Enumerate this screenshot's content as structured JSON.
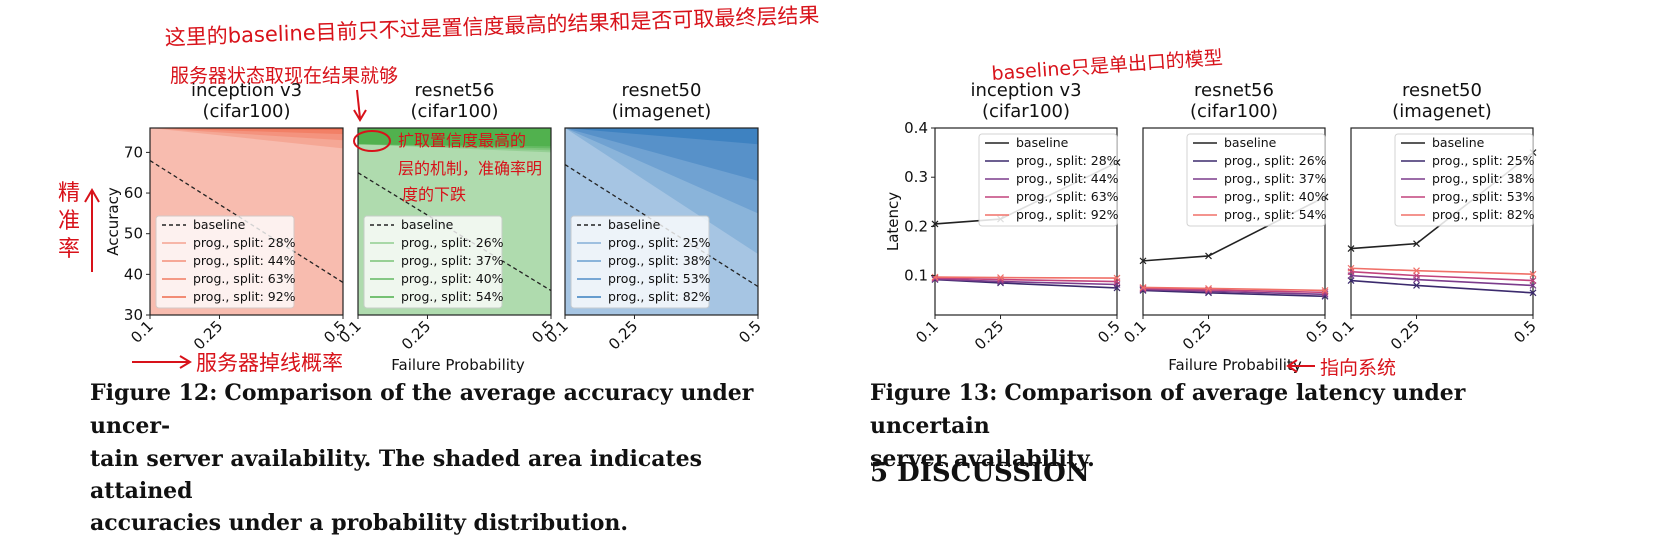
{
  "figure12": {
    "label": "Figure 12:",
    "caption": "Comparison of the average accuracy under uncertain server availability. The shaded area indicates attained accuracies under a probability distribution.",
    "caption_lines": [
      "Comparison of the average accuracy under uncer-",
      "tain server availability. The shaded area indicates attained",
      "accuracies under a probability distribution."
    ]
  },
  "figure13": {
    "label": "Figure 13:",
    "caption_lines": [
      "Comparison of average latency under uncertain",
      "server availability."
    ]
  },
  "section_heading": "5   DISCUSSION",
  "annotations": {
    "top_note_line1": "这里的baseline目前只不过是置信度最高的结果和是否可取最终层结果",
    "top_note_line2": "服务器状态取现在结果就够",
    "left_vertical": "精准率",
    "bottom_left": "服务器掉线概率",
    "green_panel_note1": "扩取置信度最高的",
    "green_panel_note2": "层的机制，准确率明",
    "green_panel_note3": "度的下跌",
    "right_top": "baseline只是单出口的模型",
    "right_bottom": "指向系统"
  },
  "chart_data": [
    {
      "type": "area",
      "title": "inception v3\n(cifar100)",
      "title_lines": [
        "inception v3",
        "(cifar100)"
      ],
      "ylabel": "Accuracy",
      "xlabel": "Failure Probability",
      "x_ticks": [
        "0.1",
        "0.25",
        "0.5"
      ],
      "y_ticks": [
        "30",
        "40",
        "50",
        "60",
        "70"
      ],
      "ylim": [
        30,
        76
      ],
      "color": "#ef6a4d",
      "x": [
        0.1,
        0.5
      ],
      "baseline": {
        "name": "baseline",
        "values": [
          68,
          38
        ]
      },
      "series": [
        {
          "name": "prog., split: 28%",
          "values": [
            76,
            71
          ]
        },
        {
          "name": "prog., split: 44%",
          "values": [
            76,
            73
          ]
        },
        {
          "name": "prog., split: 63%",
          "values": [
            76,
            74.5
          ]
        },
        {
          "name": "prog., split: 92%",
          "values": [
            76,
            75.5
          ]
        }
      ]
    },
    {
      "type": "area",
      "title": "resnet56\n(cifar100)",
      "title_lines": [
        "resnet56",
        "(cifar100)"
      ],
      "ylim": [
        30,
        76
      ],
      "color": "#4daf4a",
      "x_ticks": [
        "0.1",
        "0.25",
        "0.5"
      ],
      "x": [
        0.1,
        0.5
      ],
      "baseline": {
        "name": "baseline",
        "values": [
          65,
          36
        ]
      },
      "series": [
        {
          "name": "prog., split: 26%",
          "values": [
            72,
            70
          ]
        },
        {
          "name": "prog., split: 37%",
          "values": [
            72,
            70.5
          ]
        },
        {
          "name": "prog., split: 40%",
          "values": [
            72,
            71
          ]
        },
        {
          "name": "prog., split: 54%",
          "values": [
            72,
            71.5
          ]
        }
      ]
    },
    {
      "type": "area",
      "title": "resnet50\n(imagenet)",
      "title_lines": [
        "resnet50",
        "(imagenet)"
      ],
      "ylim": [
        30,
        76
      ],
      "color": "#3a7fc0",
      "x_ticks": [
        "0.1",
        "0.25",
        "0.5"
      ],
      "x": [
        0.1,
        0.5
      ],
      "baseline": {
        "name": "baseline",
        "values": [
          67,
          37
        ]
      },
      "series": [
        {
          "name": "prog., split: 25%",
          "values": [
            76,
            45
          ]
        },
        {
          "name": "prog., split: 38%",
          "values": [
            76,
            55
          ]
        },
        {
          "name": "prog., split: 53%",
          "values": [
            76,
            63
          ]
        },
        {
          "name": "prog., split: 82%",
          "values": [
            76,
            72
          ]
        }
      ]
    },
    {
      "type": "line",
      "title": "inception v3\n(cifar100)",
      "title_lines": [
        "inception v3",
        "(cifar100)"
      ],
      "ylabel": "Latency",
      "xlabel": "Failure Probability",
      "x_ticks": [
        "0.1",
        "0.25",
        "0.5"
      ],
      "y_ticks": [
        "0.1",
        "0.2",
        "0.3",
        "0.4"
      ],
      "ylim": [
        0.02,
        0.4
      ],
      "x": [
        0.1,
        0.25,
        0.5
      ],
      "series": [
        {
          "name": "baseline",
          "color": "#222222",
          "values": [
            0.205,
            0.215,
            0.33
          ]
        },
        {
          "name": "prog., split: 28%",
          "color": "#3b2a6d",
          "values": [
            0.092,
            0.085,
            0.075
          ]
        },
        {
          "name": "prog., split: 44%",
          "color": "#7b3c8c",
          "values": [
            0.093,
            0.088,
            0.082
          ]
        },
        {
          "name": "prog., split: 63%",
          "color": "#c2437d",
          "values": [
            0.095,
            0.092,
            0.088
          ]
        },
        {
          "name": "prog., split: 92%",
          "color": "#f07068",
          "values": [
            0.097,
            0.096,
            0.095
          ]
        }
      ]
    },
    {
      "type": "line",
      "title": "resnet56\n(cifar100)",
      "title_lines": [
        "resnet56",
        "(cifar100)"
      ],
      "ylim": [
        0.02,
        0.4
      ],
      "x_ticks": [
        "0.1",
        "0.25",
        "0.5"
      ],
      "x": [
        0.1,
        0.25,
        0.5
      ],
      "series": [
        {
          "name": "baseline",
          "color": "#222222",
          "values": [
            0.13,
            0.14,
            0.26
          ]
        },
        {
          "name": "prog., split: 26%",
          "color": "#3b2a6d",
          "values": [
            0.07,
            0.065,
            0.058
          ]
        },
        {
          "name": "prog., split: 37%",
          "color": "#7b3c8c",
          "values": [
            0.072,
            0.068,
            0.062
          ]
        },
        {
          "name": "prog., split: 40%",
          "color": "#c2437d",
          "values": [
            0.074,
            0.071,
            0.066
          ]
        },
        {
          "name": "prog., split: 54%",
          "color": "#f07068",
          "values": [
            0.076,
            0.074,
            0.07
          ]
        }
      ]
    },
    {
      "type": "line",
      "title": "resnet50\n(imagenet)",
      "title_lines": [
        "resnet50",
        "(imagenet)"
      ],
      "ylim": [
        0.02,
        0.4
      ],
      "x_ticks": [
        "0.1",
        "0.25",
        "0.5"
      ],
      "x": [
        0.1,
        0.25,
        0.5
      ],
      "series": [
        {
          "name": "baseline",
          "color": "#222222",
          "values": [
            0.155,
            0.165,
            0.35
          ]
        },
        {
          "name": "prog., split: 25%",
          "color": "#3b2a6d",
          "values": [
            0.09,
            0.08,
            0.065
          ]
        },
        {
          "name": "prog., split: 38%",
          "color": "#7b3c8c",
          "values": [
            0.1,
            0.092,
            0.08
          ]
        },
        {
          "name": "prog., split: 53%",
          "color": "#c2437d",
          "values": [
            0.108,
            0.1,
            0.09
          ]
        },
        {
          "name": "prog., split: 82%",
          "color": "#f07068",
          "values": [
            0.115,
            0.11,
            0.103
          ]
        }
      ]
    }
  ]
}
